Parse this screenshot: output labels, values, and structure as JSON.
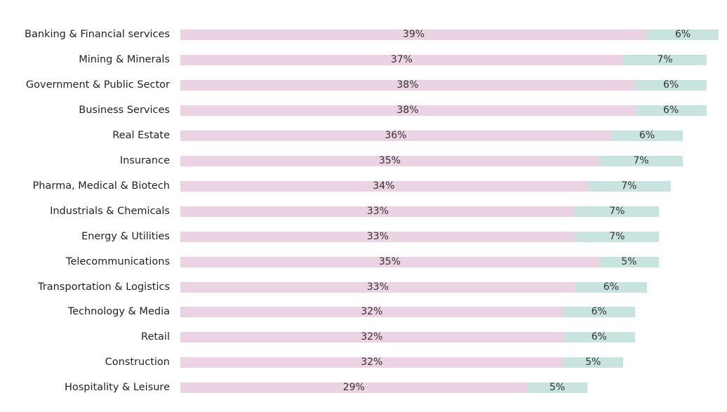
{
  "chart_data": {
    "type": "bar",
    "orientation": "horizontal",
    "stacked": true,
    "categories": [
      "Banking & Financial services",
      "Mining & Minerals",
      "Government & Public Sector",
      "Business Services",
      "Real Estate",
      "Insurance",
      "Pharma, Medical & Biotech",
      "Industrials & Chemicals",
      "Energy & Utilities",
      "Telecommunications",
      "Transportation & Logistics",
      "Technology & Media",
      "Retail",
      "Construction",
      "Hospitality & Leisure"
    ],
    "series": [
      {
        "values": [
          39,
          37,
          38,
          38,
          36,
          35,
          34,
          33,
          33,
          35,
          33,
          32,
          32,
          32,
          29
        ],
        "labels": [
          "39%",
          "37%",
          "38%",
          "38%",
          "36%",
          "35%",
          "34%",
          "33%",
          "33%",
          "35%",
          "33%",
          "32%",
          "32%",
          "32%",
          "29%"
        ],
        "color": "#ecd3e3"
      },
      {
        "values": [
          6,
          7,
          6,
          6,
          6,
          7,
          7,
          7,
          7,
          5,
          6,
          6,
          6,
          5,
          5
        ],
        "labels": [
          "6%",
          "7%",
          "6%",
          "6%",
          "6%",
          "7%",
          "7%",
          "7%",
          "7%",
          "5%",
          "6%",
          "6%",
          "6%",
          "5%",
          "5%"
        ],
        "color": "#c9e3e1"
      }
    ],
    "title": "",
    "xlabel": "",
    "ylabel": "",
    "xlim": [
      0,
      45
    ],
    "grid": false,
    "legend": "none"
  }
}
